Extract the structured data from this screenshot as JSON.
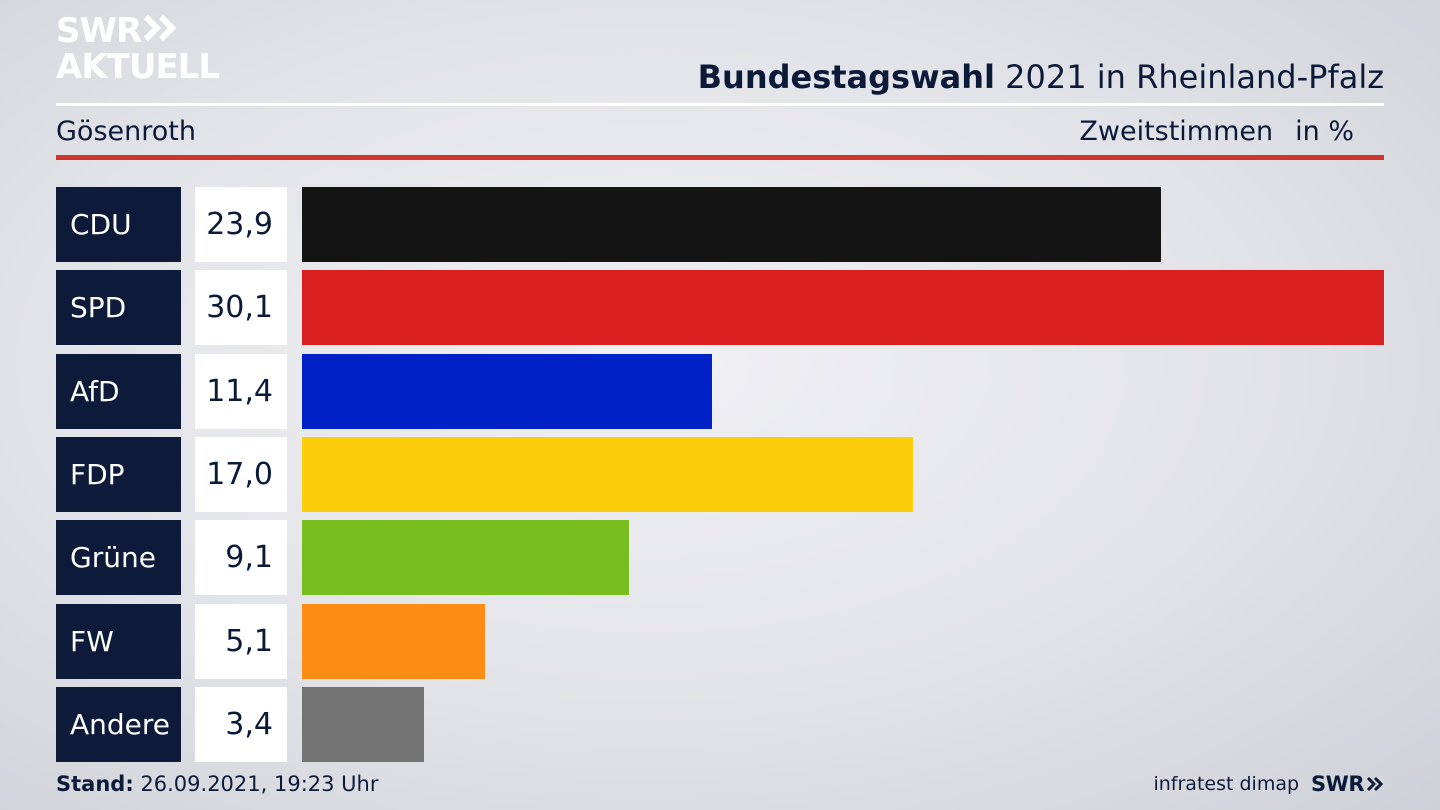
{
  "logo": {
    "line1": "SWR",
    "line2": "AKTUELL"
  },
  "header": {
    "title_bold": "Bundestagswahl",
    "title_rest": " 2021 in Rheinland-Pfalz"
  },
  "region": "Gösenroth",
  "subtitle": {
    "label": "Zweitstimmen",
    "unit": "in %"
  },
  "footer": {
    "stand_label": "Stand:",
    "stand_value": " 26.09.2021, 19:23 Uhr",
    "source": "infratest dimap",
    "brand": "SWR"
  },
  "chart_data": {
    "type": "bar",
    "orientation": "horizontal",
    "categories": [
      "CDU",
      "SPD",
      "AfD",
      "FDP",
      "Grüne",
      "FW",
      "Andere"
    ],
    "values": [
      23.9,
      30.1,
      11.4,
      17.0,
      9.1,
      5.1,
      3.4
    ],
    "value_labels": [
      "23,9",
      "30,1",
      "11,4",
      "17,0",
      "9,1",
      "5,1",
      "3,4"
    ],
    "colors": [
      "#141414",
      "#d82020",
      "#0020c8",
      "#fccd0a",
      "#78be1e",
      "#fc8c14",
      "#737373"
    ],
    "xlim": [
      0,
      30.1
    ],
    "title": "Bundestagswahl 2021 in Rheinland-Pfalz",
    "xlabel": "Zweitstimmen in %",
    "grid": false,
    "legend": "none"
  }
}
